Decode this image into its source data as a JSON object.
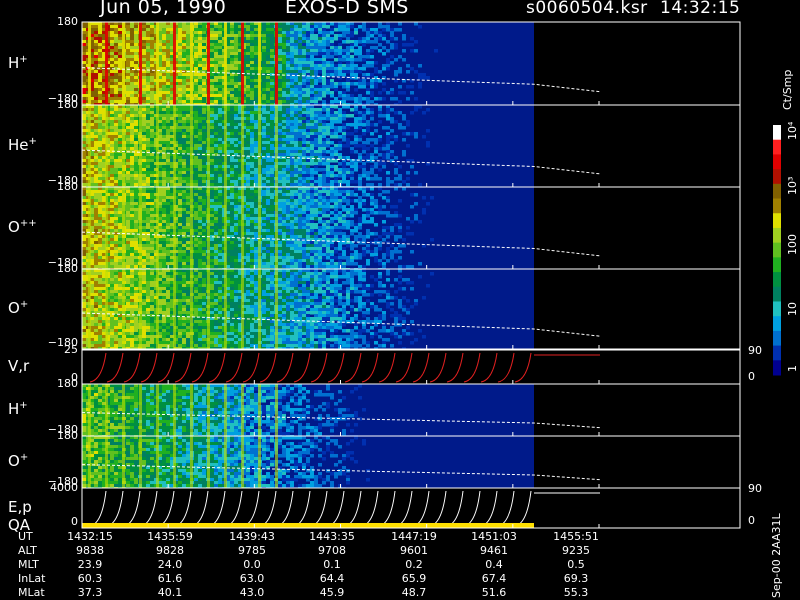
{
  "header": {
    "date": "Jun 05, 1990",
    "instrument": "EXOS-D SMS",
    "file": "s0060504.ksr",
    "time": "14:32:15"
  },
  "colorbar": {
    "units": "Ct/Smp",
    "labels": [
      "1",
      "10",
      "100",
      "10³",
      "10⁴"
    ],
    "colors": [
      "#000090",
      "#0030b0",
      "#0070d0",
      "#00a0e0",
      "#20c0c0",
      "#008060",
      "#009040",
      "#20b020",
      "#60c020",
      "#a0d020",
      "#e0e000",
      "#a08000",
      "#806000",
      "#b01000",
      "#e00000",
      "#ff2020",
      "#ffffff"
    ]
  },
  "panels": [
    {
      "label": "H",
      "sup": "+",
      "ytop": "180",
      "ybot": "−180"
    },
    {
      "label": "He",
      "sup": "+",
      "ytop": "180",
      "ybot": "−180"
    },
    {
      "label": "O",
      "sup": "++",
      "ytop": "180",
      "ybot": "−180"
    },
    {
      "label": "O",
      "sup": "+",
      "ytop": "180",
      "ybot": "−180"
    },
    {
      "label": "V,r",
      "sup": "",
      "ytop": "25",
      "ybot": "0",
      "rtop": "90",
      "rbot": "0"
    },
    {
      "label": "H",
      "sup": "+",
      "ytop": "180",
      "ybot": "−180"
    },
    {
      "label": "O",
      "sup": "+",
      "ytop": "180",
      "ybot": "−180"
    },
    {
      "label": "E,p",
      "sup": "",
      "label2": "QA",
      "ytop": "4000",
      "ybot": "0",
      "rtop": "90",
      "rbot": "0"
    }
  ],
  "ephemeris": {
    "rows": [
      {
        "label": "UT",
        "values": [
          "1432:15",
          "1435:59",
          "1439:43",
          "1443:35",
          "1447:19",
          "1451:03",
          "1455:51"
        ]
      },
      {
        "label": "ALT",
        "values": [
          "9838",
          "9828",
          "9785",
          "9708",
          "9601",
          "9461",
          "9235"
        ]
      },
      {
        "label": "MLT",
        "values": [
          "23.9",
          "24.0",
          "0.0",
          "0.1",
          "0.2",
          "0.4",
          "0.5"
        ]
      },
      {
        "label": "InLat",
        "values": [
          "60.3",
          "61.6",
          "63.0",
          "64.4",
          "65.9",
          "67.4",
          "69.3"
        ]
      },
      {
        "label": "MLat",
        "values": [
          "37.3",
          "40.1",
          "43.0",
          "45.9",
          "48.7",
          "51.6",
          "55.3"
        ]
      }
    ]
  },
  "footer_id": "Sep-00 2AA31L",
  "chart_data": {
    "type": "heatmap",
    "title": "Jun 05, 1990   EXOS-D SMS",
    "x_ticks": [
      "1432:15",
      "1435:59",
      "1439:43",
      "1443:35",
      "1447:19",
      "1451:03",
      "1455:51"
    ],
    "data_end_tick_fraction": 0.73,
    "ylim_angle": [
      -180,
      180
    ],
    "ylim_vr": [
      0,
      25
    ],
    "ylim_ep": [
      0,
      4000
    ],
    "colorbar_log_range": [
      1,
      10000
    ],
    "colorbar_units": "Ct/Smp"
  }
}
